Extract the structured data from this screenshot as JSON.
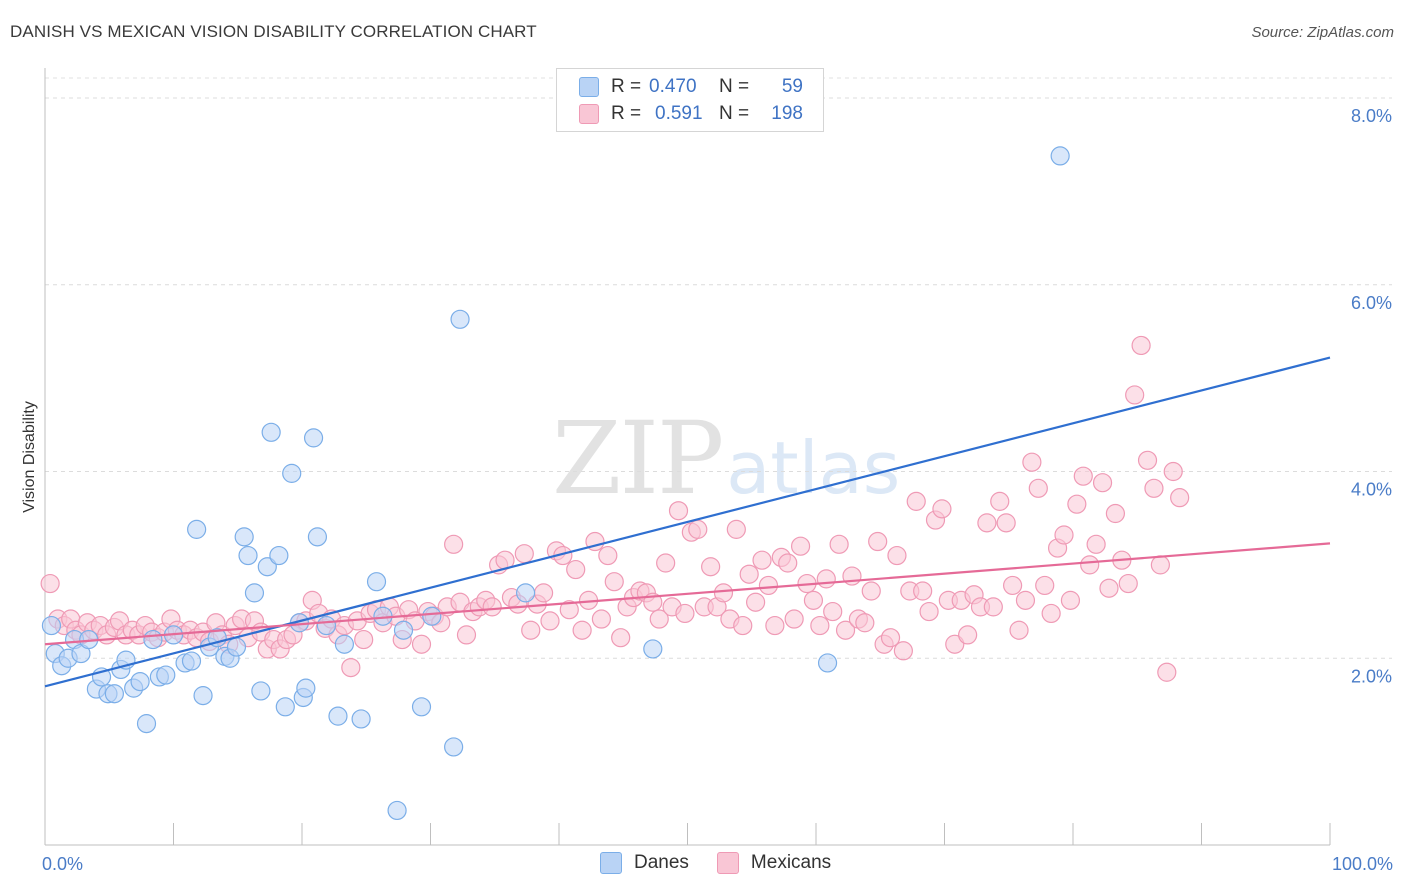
{
  "header": {
    "title": "DANISH VS MEXICAN VISION DISABILITY CORRELATION CHART",
    "source": "Source: ZipAtlas.com"
  },
  "watermark": {
    "zip": "ZIP",
    "atlas": "atlas"
  },
  "legend": {
    "rows": [
      {
        "r_label": "R =",
        "r_value": "0.470",
        "n_label": "N =",
        "n_value": "59",
        "color": "#9fc3f0"
      },
      {
        "r_label": "R =",
        "r_value": "0.591",
        "n_label": "N =",
        "n_value": "198",
        "color": "#f7b8cb"
      }
    ]
  },
  "bottom_legend": {
    "items": [
      {
        "label": "Danes",
        "color": "#b9d3f5"
      },
      {
        "label": "Mexicans",
        "color": "#f9c6d5"
      }
    ]
  },
  "chart_data": {
    "type": "scatter",
    "title": "DANISH VS MEXICAN VISION DISABILITY CORRELATION CHART",
    "ylabel": "Vision Disability",
    "xlabel": "",
    "xlim": [
      0,
      100
    ],
    "ylim": [
      0,
      8.3
    ],
    "x_tick_labels": [
      "0.0%",
      "100.0%"
    ],
    "y_ticks": [
      {
        "value": 2,
        "label": "2.0%"
      },
      {
        "value": 4,
        "label": "4.0%"
      },
      {
        "value": 6,
        "label": "6.0%"
      },
      {
        "value": 8,
        "label": "8.0%"
      }
    ],
    "grid": true,
    "legend_position": "top-center",
    "series": [
      {
        "name": "Danes",
        "color": "#7baee8",
        "fill": "#b9d3f5",
        "trend": {
          "x": [
            0,
            100
          ],
          "y": [
            1.7,
            5.22
          ]
        },
        "points": [
          [
            0.5,
            2.35
          ],
          [
            0.8,
            2.05
          ],
          [
            1.3,
            1.92
          ],
          [
            1.8,
            2.0
          ],
          [
            2.3,
            2.2
          ],
          [
            2.8,
            2.05
          ],
          [
            3.4,
            2.2
          ],
          [
            4.0,
            1.67
          ],
          [
            4.4,
            1.8
          ],
          [
            4.9,
            1.62
          ],
          [
            5.4,
            1.62
          ],
          [
            5.9,
            1.88
          ],
          [
            6.3,
            1.98
          ],
          [
            6.9,
            1.68
          ],
          [
            7.4,
            1.75
          ],
          [
            7.9,
            1.3
          ],
          [
            8.4,
            2.2
          ],
          [
            8.9,
            1.8
          ],
          [
            9.4,
            1.82
          ],
          [
            10.0,
            2.25
          ],
          [
            10.9,
            1.95
          ],
          [
            11.4,
            1.97
          ],
          [
            11.8,
            3.38
          ],
          [
            12.3,
            1.6
          ],
          [
            12.8,
            2.12
          ],
          [
            13.4,
            2.22
          ],
          [
            14.0,
            2.02
          ],
          [
            14.4,
            2.0
          ],
          [
            14.9,
            2.12
          ],
          [
            15.5,
            3.3
          ],
          [
            15.8,
            3.1
          ],
          [
            16.3,
            2.7
          ],
          [
            16.8,
            1.65
          ],
          [
            17.3,
            2.98
          ],
          [
            17.6,
            4.42
          ],
          [
            18.2,
            3.1
          ],
          [
            18.7,
            1.48
          ],
          [
            19.2,
            3.98
          ],
          [
            19.8,
            2.38
          ],
          [
            20.1,
            1.58
          ],
          [
            20.3,
            1.68
          ],
          [
            20.9,
            4.36
          ],
          [
            21.2,
            3.3
          ],
          [
            21.9,
            2.35
          ],
          [
            22.8,
            1.38
          ],
          [
            23.3,
            2.15
          ],
          [
            24.6,
            1.35
          ],
          [
            25.8,
            2.82
          ],
          [
            26.3,
            2.45
          ],
          [
            27.4,
            0.37
          ],
          [
            27.9,
            2.3
          ],
          [
            29.3,
            1.48
          ],
          [
            30.1,
            2.45
          ],
          [
            31.8,
            1.05
          ],
          [
            32.3,
            5.63
          ],
          [
            37.4,
            2.7
          ],
          [
            47.3,
            2.1
          ],
          [
            60.9,
            1.95
          ],
          [
            79.0,
            7.38
          ]
        ]
      },
      {
        "name": "Mexicans",
        "color": "#ef9ab5",
        "fill": "#f9c6d5",
        "trend": {
          "x": [
            0,
            100
          ],
          "y": [
            2.15,
            3.23
          ]
        },
        "points": [
          [
            0.4,
            2.8
          ],
          [
            1.0,
            2.42
          ],
          [
            1.5,
            2.35
          ],
          [
            2.0,
            2.42
          ],
          [
            2.4,
            2.3
          ],
          [
            2.8,
            2.25
          ],
          [
            3.3,
            2.38
          ],
          [
            3.8,
            2.3
          ],
          [
            4.3,
            2.35
          ],
          [
            4.8,
            2.25
          ],
          [
            5.4,
            2.33
          ],
          [
            5.8,
            2.4
          ],
          [
            6.3,
            2.25
          ],
          [
            6.8,
            2.3
          ],
          [
            7.3,
            2.25
          ],
          [
            7.8,
            2.35
          ],
          [
            8.3,
            2.28
          ],
          [
            8.8,
            2.22
          ],
          [
            9.3,
            2.28
          ],
          [
            9.8,
            2.42
          ],
          [
            10.3,
            2.3
          ],
          [
            10.8,
            2.25
          ],
          [
            11.3,
            2.3
          ],
          [
            11.8,
            2.22
          ],
          [
            12.3,
            2.28
          ],
          [
            12.8,
            2.18
          ],
          [
            13.3,
            2.38
          ],
          [
            13.8,
            2.25
          ],
          [
            14.3,
            2.15
          ],
          [
            14.8,
            2.35
          ],
          [
            15.3,
            2.42
          ],
          [
            15.8,
            2.22
          ],
          [
            16.3,
            2.4
          ],
          [
            16.8,
            2.28
          ],
          [
            17.3,
            2.1
          ],
          [
            17.8,
            2.2
          ],
          [
            18.3,
            2.1
          ],
          [
            18.8,
            2.2
          ],
          [
            19.3,
            2.25
          ],
          [
            19.8,
            2.38
          ],
          [
            20.3,
            2.4
          ],
          [
            20.8,
            2.62
          ],
          [
            21.3,
            2.48
          ],
          [
            21.8,
            2.32
          ],
          [
            22.3,
            2.42
          ],
          [
            22.8,
            2.25
          ],
          [
            23.3,
            2.35
          ],
          [
            23.8,
            1.9
          ],
          [
            24.3,
            2.4
          ],
          [
            24.8,
            2.2
          ],
          [
            25.3,
            2.48
          ],
          [
            25.8,
            2.52
          ],
          [
            26.3,
            2.38
          ],
          [
            26.8,
            2.55
          ],
          [
            27.3,
            2.45
          ],
          [
            27.8,
            2.2
          ],
          [
            28.3,
            2.52
          ],
          [
            28.8,
            2.4
          ],
          [
            29.3,
            2.15
          ],
          [
            29.8,
            2.5
          ],
          [
            30.3,
            2.45
          ],
          [
            30.8,
            2.38
          ],
          [
            31.3,
            2.55
          ],
          [
            31.8,
            3.22
          ],
          [
            32.3,
            2.6
          ],
          [
            32.8,
            2.25
          ],
          [
            33.3,
            2.5
          ],
          [
            33.8,
            2.55
          ],
          [
            34.3,
            2.62
          ],
          [
            34.8,
            2.55
          ],
          [
            35.3,
            3.0
          ],
          [
            35.8,
            3.05
          ],
          [
            36.3,
            2.65
          ],
          [
            36.8,
            2.58
          ],
          [
            37.3,
            3.12
          ],
          [
            37.8,
            2.3
          ],
          [
            38.3,
            2.58
          ],
          [
            38.8,
            2.7
          ],
          [
            39.3,
            2.4
          ],
          [
            39.8,
            3.15
          ],
          [
            40.3,
            3.1
          ],
          [
            40.8,
            2.52
          ],
          [
            41.3,
            2.95
          ],
          [
            41.8,
            2.3
          ],
          [
            42.3,
            2.62
          ],
          [
            42.8,
            3.25
          ],
          [
            43.3,
            2.42
          ],
          [
            43.8,
            3.1
          ],
          [
            44.3,
            2.82
          ],
          [
            44.8,
            2.22
          ],
          [
            45.3,
            2.55
          ],
          [
            45.8,
            2.65
          ],
          [
            46.3,
            2.72
          ],
          [
            46.8,
            2.7
          ],
          [
            47.3,
            2.6
          ],
          [
            47.8,
            2.42
          ],
          [
            48.3,
            3.02
          ],
          [
            48.8,
            2.55
          ],
          [
            49.3,
            3.58
          ],
          [
            49.8,
            2.48
          ],
          [
            50.3,
            3.35
          ],
          [
            50.8,
            3.38
          ],
          [
            51.3,
            2.55
          ],
          [
            51.8,
            2.98
          ],
          [
            52.3,
            2.55
          ],
          [
            52.8,
            2.7
          ],
          [
            53.3,
            2.42
          ],
          [
            53.8,
            3.38
          ],
          [
            54.3,
            2.35
          ],
          [
            54.8,
            2.9
          ],
          [
            55.3,
            2.6
          ],
          [
            55.8,
            3.05
          ],
          [
            56.3,
            2.78
          ],
          [
            56.8,
            2.35
          ],
          [
            57.3,
            3.08
          ],
          [
            57.8,
            3.02
          ],
          [
            58.3,
            2.42
          ],
          [
            58.8,
            3.2
          ],
          [
            59.3,
            2.8
          ],
          [
            59.8,
            2.62
          ],
          [
            60.3,
            2.35
          ],
          [
            60.8,
            2.85
          ],
          [
            61.3,
            2.5
          ],
          [
            61.8,
            3.22
          ],
          [
            62.3,
            2.3
          ],
          [
            62.8,
            2.88
          ],
          [
            63.3,
            2.42
          ],
          [
            63.8,
            2.38
          ],
          [
            64.3,
            2.72
          ],
          [
            64.8,
            3.25
          ],
          [
            65.3,
            2.15
          ],
          [
            65.8,
            2.22
          ],
          [
            66.3,
            3.1
          ],
          [
            66.8,
            2.08
          ],
          [
            67.3,
            2.72
          ],
          [
            67.8,
            3.68
          ],
          [
            68.3,
            2.72
          ],
          [
            68.8,
            2.5
          ],
          [
            69.3,
            3.48
          ],
          [
            69.8,
            3.6
          ],
          [
            70.3,
            2.62
          ],
          [
            70.8,
            2.15
          ],
          [
            71.3,
            2.62
          ],
          [
            71.8,
            2.25
          ],
          [
            72.3,
            2.68
          ],
          [
            72.8,
            2.55
          ],
          [
            73.3,
            3.45
          ],
          [
            73.8,
            2.55
          ],
          [
            74.3,
            3.68
          ],
          [
            74.8,
            3.45
          ],
          [
            75.3,
            2.78
          ],
          [
            75.8,
            2.3
          ],
          [
            76.3,
            2.62
          ],
          [
            76.8,
            4.1
          ],
          [
            77.3,
            3.82
          ],
          [
            77.8,
            2.78
          ],
          [
            78.3,
            2.48
          ],
          [
            78.8,
            3.18
          ],
          [
            79.3,
            3.32
          ],
          [
            79.8,
            2.62
          ],
          [
            80.3,
            3.65
          ],
          [
            80.8,
            3.95
          ],
          [
            81.3,
            3.0
          ],
          [
            81.8,
            3.22
          ],
          [
            82.3,
            3.88
          ],
          [
            82.8,
            2.75
          ],
          [
            83.3,
            3.55
          ],
          [
            83.8,
            3.05
          ],
          [
            84.3,
            2.8
          ],
          [
            84.8,
            4.82
          ],
          [
            85.3,
            5.35
          ],
          [
            85.8,
            4.12
          ],
          [
            86.3,
            3.82
          ],
          [
            86.8,
            3.0
          ],
          [
            87.3,
            1.85
          ],
          [
            87.8,
            4.0
          ],
          [
            88.3,
            3.72
          ]
        ]
      }
    ]
  }
}
